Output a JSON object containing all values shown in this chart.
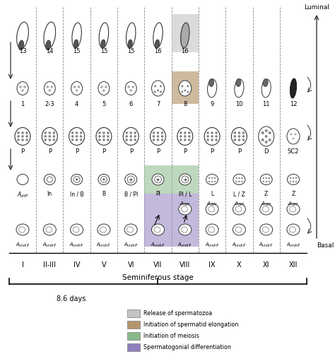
{
  "stages": [
    "I",
    "II-III",
    "IV",
    "V",
    "VI",
    "VII",
    "VIII",
    "IX",
    "X",
    "XI",
    "XII"
  ],
  "row1_nums": [
    "13",
    "14",
    "15",
    "15",
    "15",
    "16",
    "16"
  ],
  "row1_cols": [
    0,
    1,
    2,
    3,
    4,
    5,
    6
  ],
  "row2_nums": [
    "1",
    "2-3",
    "4",
    "5",
    "6",
    "7",
    "8",
    "9",
    "10",
    "11",
    "12"
  ],
  "row3_labels": [
    "P",
    "P",
    "P",
    "P",
    "P",
    "P",
    "P",
    "P",
    "P",
    "D",
    "SC2"
  ],
  "row4_labels": [
    "$A_{diff}$",
    "In",
    "In / B",
    "B",
    "B / Pl",
    "Pl",
    "Pl / L",
    "L",
    "L / Z",
    "Z",
    "Z"
  ],
  "row5a_show_cols": [
    6,
    7,
    8,
    9,
    10
  ],
  "color_gray": "#c4c4c4",
  "color_tan": "#b5966b",
  "color_green": "#89b98a",
  "color_purple": "#9080be",
  "legend_items": [
    {
      "label": "Release of spermatozoa",
      "color": "#c4c4c4"
    },
    {
      "label": "Initiation of spermatid elongation",
      "color": "#b5966b"
    },
    {
      "label": "Initiation of meiosis",
      "color": "#89b98a"
    },
    {
      "label": "Spermatogonial differentiation",
      "color": "#9080be"
    }
  ],
  "luminal_label": "Luminal",
  "basal_label": "Basal",
  "seminiferous_label": "Seminiferous stage",
  "days_label": "8.6 days",
  "figsize": [
    4.74,
    5.01
  ],
  "dpi": 100
}
